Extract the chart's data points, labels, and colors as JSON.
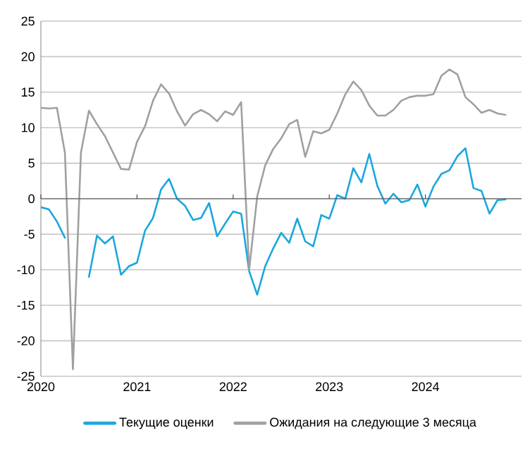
{
  "chart_data": {
    "type": "line",
    "x": [
      "2020-01",
      "2020-02",
      "2020-03",
      "2020-04",
      "2020-05",
      "2020-06",
      "2020-07",
      "2020-08",
      "2020-09",
      "2020-10",
      "2020-11",
      "2020-12",
      "2021-01",
      "2021-02",
      "2021-03",
      "2021-04",
      "2021-05",
      "2021-06",
      "2021-07",
      "2021-08",
      "2021-09",
      "2021-10",
      "2021-11",
      "2021-12",
      "2022-01",
      "2022-02",
      "2022-03",
      "2022-04",
      "2022-05",
      "2022-06",
      "2022-07",
      "2022-08",
      "2022-09",
      "2022-10",
      "2022-11",
      "2022-12",
      "2023-01",
      "2023-02",
      "2023-03",
      "2023-04",
      "2023-05",
      "2023-06",
      "2023-07",
      "2023-08",
      "2023-09",
      "2023-10",
      "2023-11",
      "2023-12",
      "2024-01",
      "2024-02",
      "2024-03",
      "2024-04",
      "2024-05",
      "2024-06",
      "2024-07",
      "2024-08",
      "2024-09",
      "2024-10",
      "2024-11"
    ],
    "series": [
      {
        "name": "Текущие оценки",
        "color": "#1aa7dc",
        "values": [
          -1.2,
          -1.5,
          -3.2,
          -5.5,
          null,
          null,
          -11,
          -5.2,
          -6.3,
          -5.3,
          -10.7,
          -9.5,
          -9,
          -4.5,
          -2.7,
          1.3,
          2.8,
          0,
          -1,
          -3,
          -2.7,
          -0.6,
          -5.3,
          -3.5,
          -1.8,
          -2.1,
          -10.2,
          -13.5,
          -9.5,
          -7,
          -4.8,
          -6.2,
          -2.8,
          -6,
          -6.7,
          -2.3,
          -2.8,
          0.5,
          0,
          4.3,
          2.3,
          6.3,
          1.8,
          -0.7,
          0.7,
          -0.5,
          -0.2,
          2,
          -1.1,
          1.7,
          3.5,
          4,
          6,
          7.1,
          1.5,
          1.1,
          -2.1,
          -0.2,
          -0.1
        ]
      },
      {
        "name": "Ожидания на следующие 3 месяца",
        "color": "#a0a0a0",
        "values": [
          12.8,
          12.7,
          12.8,
          6.5,
          -24,
          6.5,
          12.4,
          10.5,
          8.8,
          6.5,
          4.2,
          4.1,
          8,
          10.2,
          13.8,
          16.1,
          14.8,
          12.3,
          10.3,
          11.9,
          12.5,
          11.9,
          10.9,
          12.3,
          11.8,
          13.6,
          -10,
          0.3,
          4.7,
          7,
          8.5,
          10.5,
          11.1,
          5.9,
          9.5,
          9.2,
          9.7,
          12,
          14.7,
          16.5,
          15.3,
          13.1,
          11.7,
          11.7,
          12.5,
          13.8,
          14.3,
          14.5,
          14.5,
          14.7,
          17.3,
          18.2,
          17.5,
          14.3,
          13.3,
          12.1,
          12.5,
          12,
          11.8
        ]
      }
    ],
    "xlim": [
      "2020-01",
      "2025-01"
    ],
    "xticks": [
      {
        "value": "2020-01",
        "label": "2020"
      },
      {
        "value": "2021-01",
        "label": "2021"
      },
      {
        "value": "2022-01",
        "label": "2022"
      },
      {
        "value": "2023-01",
        "label": "2023"
      },
      {
        "value": "2024-01",
        "label": "2024"
      }
    ],
    "ylim": [
      -25,
      25
    ],
    "yticks": [
      -25,
      -20,
      -15,
      -10,
      -5,
      0,
      5,
      10,
      15,
      20,
      25
    ],
    "grid": "y",
    "legend": "bottom",
    "line_style": "solid",
    "marker": "none"
  }
}
